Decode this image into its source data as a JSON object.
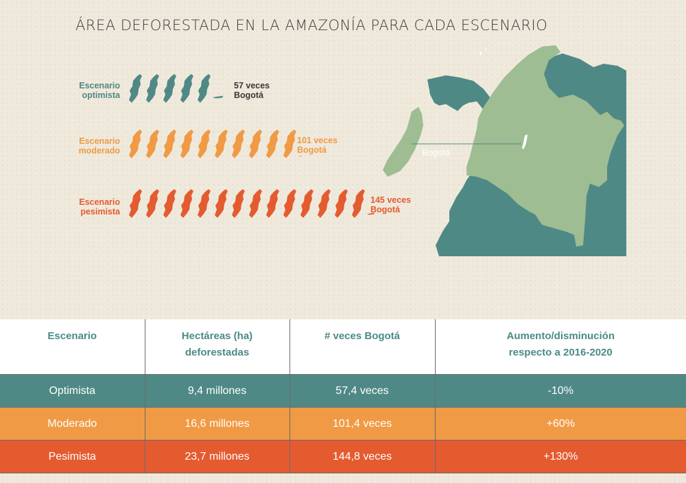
{
  "title": "Área deforestada en la Amazonía para cada escenario",
  "colors": {
    "optimista": "#4f8985",
    "moderado": "#f09a45",
    "pesimista": "#e45b30",
    "map_region_light": "#9ebd92",
    "map_region_dark": "#4f8985"
  },
  "icon_name": "bogota-shape-icon",
  "chart_data": {
    "type": "bar",
    "unit_icon": "Bogotá",
    "categories": [
      "Escenario optimista",
      "Escenario moderado",
      "Escenario pesimista"
    ],
    "values": [
      57,
      101,
      145
    ],
    "series": [
      {
        "key": "optimista",
        "label_line1": "Escenario",
        "label_line2": "optimista",
        "value": 57,
        "annotation_line1": "57 veces",
        "annotation_line2": "Bogotá"
      },
      {
        "key": "moderado",
        "label_line1": "Escenario",
        "label_line2": "moderado",
        "value": 101,
        "annotation_line1": "101 veces",
        "annotation_line2": "Bogotá"
      },
      {
        "key": "pesimista",
        "label_line1": "Escenario",
        "label_line2": "pesimista",
        "value": 145,
        "annotation_line1": "145 veces",
        "annotation_line2": "Bogotá"
      }
    ]
  },
  "map": {
    "label": "Bogotá"
  },
  "table": {
    "headers": [
      {
        "line1": "Escenario",
        "line2": ""
      },
      {
        "line1": "Hectáreas (ha)",
        "line2": "deforestadas"
      },
      {
        "line1": "# veces Bogotá",
        "line2": ""
      },
      {
        "line1": "Aumento/disminución",
        "line2": "respecto a 2016-2020"
      }
    ],
    "rows": [
      {
        "key": "optimista",
        "cells": [
          "Optimista",
          "9,4 millones",
          "57,4 veces",
          "-10%"
        ]
      },
      {
        "key": "moderado",
        "cells": [
          "Moderado",
          "16,6 millones",
          "101,4 veces",
          "+60%"
        ]
      },
      {
        "key": "pesimista",
        "cells": [
          "Pesimista",
          "23,7 millones",
          "144,8 veces",
          "+130%"
        ]
      }
    ]
  }
}
